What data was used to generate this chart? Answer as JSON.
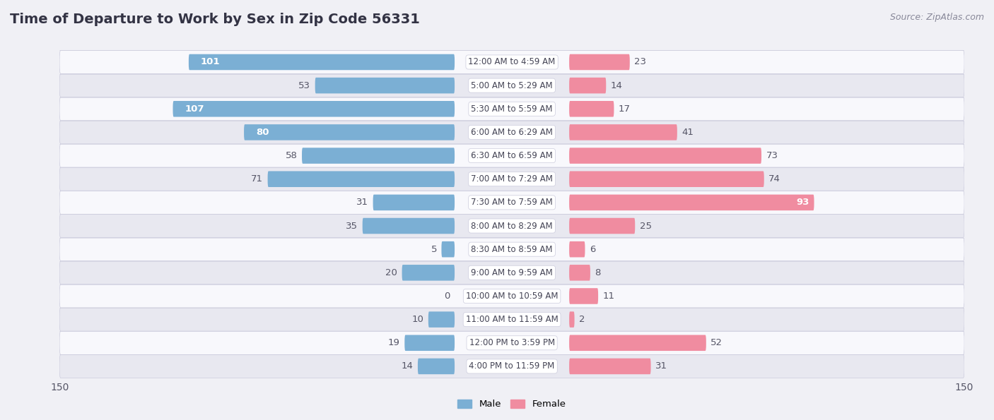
{
  "title": "Time of Departure to Work by Sex in Zip Code 56331",
  "source": "Source: ZipAtlas.com",
  "categories": [
    "12:00 AM to 4:59 AM",
    "5:00 AM to 5:29 AM",
    "5:30 AM to 5:59 AM",
    "6:00 AM to 6:29 AM",
    "6:30 AM to 6:59 AM",
    "7:00 AM to 7:29 AM",
    "7:30 AM to 7:59 AM",
    "8:00 AM to 8:29 AM",
    "8:30 AM to 8:59 AM",
    "9:00 AM to 9:59 AM",
    "10:00 AM to 10:59 AM",
    "11:00 AM to 11:59 AM",
    "12:00 PM to 3:59 PM",
    "4:00 PM to 11:59 PM"
  ],
  "male_values": [
    101,
    53,
    107,
    80,
    58,
    71,
    31,
    35,
    5,
    20,
    0,
    10,
    19,
    14
  ],
  "female_values": [
    23,
    14,
    17,
    41,
    73,
    74,
    93,
    25,
    6,
    8,
    11,
    2,
    52,
    31
  ],
  "male_color": "#7bafd4",
  "female_color": "#f08ca0",
  "axis_limit": 150,
  "row_bg_light": "#f0f0f5",
  "row_bg_dark": "#e2e2ea",
  "title_fontsize": 14,
  "label_fontsize": 9.5,
  "cat_fontsize": 8.5,
  "tick_fontsize": 10,
  "source_fontsize": 9
}
